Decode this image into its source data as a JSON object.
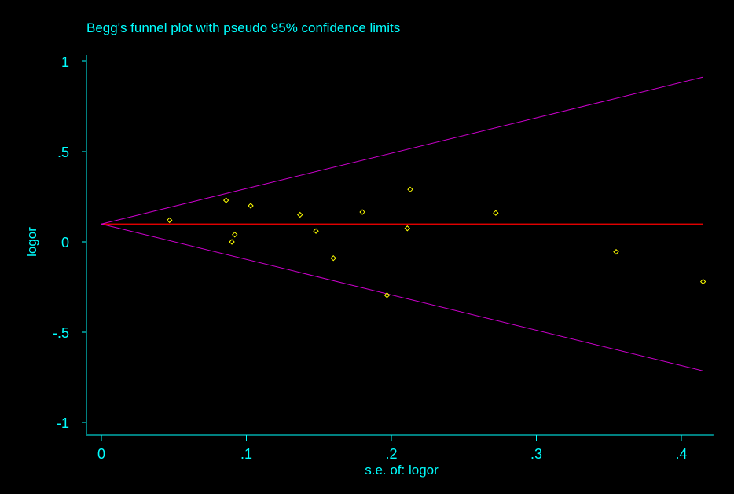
{
  "chart_data": {
    "type": "scatter",
    "title": "Begg's funnel plot with pseudo 95% confidence limits",
    "xlabel": "s.e. of: logor",
    "ylabel": "logor",
    "xlim": [
      0,
      0.42
    ],
    "ylim": [
      -1.05,
      1.05
    ],
    "x_ticks": [
      {
        "value": 0,
        "label": "0"
      },
      {
        "value": 0.1,
        "label": ".1"
      },
      {
        "value": 0.2,
        "label": ".2"
      },
      {
        "value": 0.3,
        "label": ".3"
      },
      {
        "value": 0.4,
        "label": ".4"
      }
    ],
    "y_ticks": [
      {
        "value": 1,
        "label": "1"
      },
      {
        "value": 0.5,
        "label": ".5"
      },
      {
        "value": 0,
        "label": "0"
      },
      {
        "value": -0.5,
        "label": "-.5"
      },
      {
        "value": -1,
        "label": "-1"
      }
    ],
    "pooled_estimate": 0.099,
    "confidence_z": 1.96,
    "grid": false,
    "points": [
      {
        "x": 0.047,
        "y": 0.12
      },
      {
        "x": 0.086,
        "y": 0.23
      },
      {
        "x": 0.09,
        "y": 0.0
      },
      {
        "x": 0.092,
        "y": 0.04
      },
      {
        "x": 0.103,
        "y": 0.2
      },
      {
        "x": 0.137,
        "y": 0.15
      },
      {
        "x": 0.148,
        "y": 0.06
      },
      {
        "x": 0.16,
        "y": -0.09
      },
      {
        "x": 0.18,
        "y": 0.165
      },
      {
        "x": 0.197,
        "y": -0.295
      },
      {
        "x": 0.211,
        "y": 0.075
      },
      {
        "x": 0.213,
        "y": 0.29
      },
      {
        "x": 0.272,
        "y": 0.16
      },
      {
        "x": 0.355,
        "y": -0.055
      },
      {
        "x": 0.415,
        "y": -0.22
      }
    ]
  },
  "colors": {
    "background": "#000000",
    "axis": "#00ffff",
    "text": "#00ffff",
    "points": "#ffff00",
    "pooled_line": "#ff0000",
    "confidence_limits": "#cc00cc"
  }
}
